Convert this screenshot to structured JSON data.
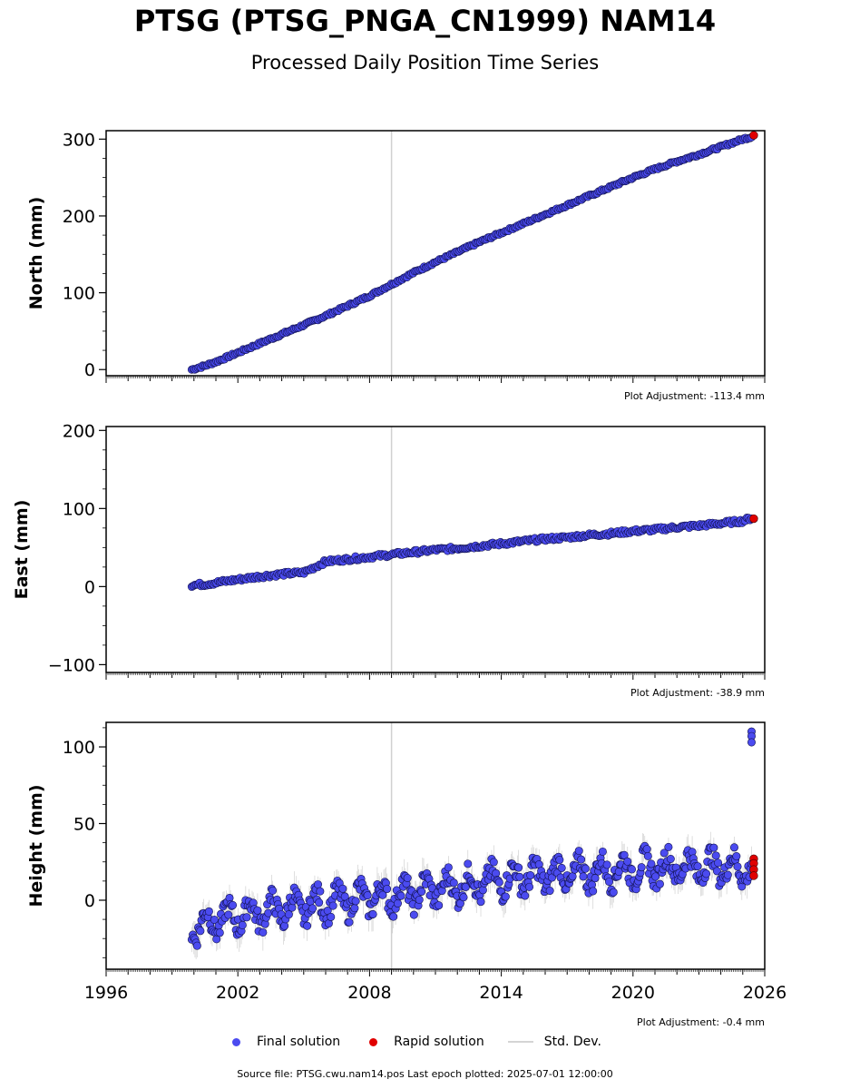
{
  "title": "PTSG (PTSG_PNGA_CN1999) NAM14",
  "subtitle": "Processed Daily Position Time Series",
  "legend": {
    "final_label": "Final solution",
    "rapid_label": "Rapid solution",
    "std_label": "Std. Dev."
  },
  "colors": {
    "final": "#4b4bf0",
    "rapid": "#e00000",
    "stddev": "#c8c8c8",
    "vertical_line": "#d0d0d0"
  },
  "footer": "Source file: PTSG.cwu.nam14.pos  Last epoch plotted: 2025-07-01 12:00:00",
  "chart_data": [
    {
      "type": "scatter",
      "ylabel": "North (mm)",
      "adjustment": "Plot Adjustment: -113.4 mm",
      "xlim": [
        1996,
        2026
      ],
      "ylim": [
        -8,
        311
      ],
      "yticks": [
        0,
        100,
        200,
        300
      ],
      "yticklabels": [
        "0",
        "100",
        "200",
        "300"
      ],
      "xticklabels_shown": false,
      "vertical_line_x": 2009.0,
      "final_solution": {
        "x": [
          1999.9,
          2000.5,
          2001.0,
          2002.0,
          2003.0,
          2004.0,
          2005.0,
          2006.0,
          2007.0,
          2008.0,
          2009.0,
          2010.0,
          2011.0,
          2012.0,
          2013.0,
          2014.0,
          2015.0,
          2016.0,
          2017.0,
          2018.0,
          2019.0,
          2020.0,
          2021.0,
          2022.0,
          2023.0,
          2024.0,
          2025.0,
          2025.4
        ],
        "y": [
          0,
          5,
          10,
          22,
          34,
          46,
          58,
          70,
          83,
          96,
          111,
          126,
          140,
          153,
          166,
          178,
          190,
          202,
          214,
          226,
          238,
          250,
          261,
          271,
          280,
          290,
          300,
          303
        ]
      },
      "rapid_solution": {
        "x": [
          2025.5
        ],
        "y": [
          305
        ]
      }
    },
    {
      "type": "scatter",
      "ylabel": "East (mm)",
      "adjustment": "Plot Adjustment: -38.9 mm",
      "xlim": [
        1996,
        2026
      ],
      "ylim": [
        -110,
        205
      ],
      "yticks": [
        -100,
        0,
        100,
        200
      ],
      "yticklabels": [
        "−100",
        "0",
        "100",
        "200"
      ],
      "xticklabels_shown": false,
      "vertical_line_x": 2009.0,
      "final_solution": {
        "x": [
          1999.9,
          2000.5,
          2001.0,
          2002.0,
          2003.0,
          2004.0,
          2005.0,
          2005.5,
          2006.0,
          2007.0,
          2008.0,
          2009.0,
          2010.0,
          2011.0,
          2012.0,
          2013.0,
          2014.0,
          2015.0,
          2016.0,
          2017.0,
          2018.0,
          2019.0,
          2020.0,
          2021.0,
          2022.0,
          2023.0,
          2024.0,
          2025.0,
          2025.4
        ],
        "y": [
          2,
          3,
          5,
          9,
          13,
          16,
          18,
          25,
          32,
          35,
          38,
          41,
          44,
          47,
          49,
          52,
          55,
          58,
          61,
          63,
          66,
          68,
          71,
          73,
          76,
          78,
          81,
          84,
          88
        ]
      },
      "rapid_solution": {
        "x": [
          2025.5
        ],
        "y": [
          87
        ]
      }
    },
    {
      "type": "scatter",
      "ylabel": "Height (mm)",
      "adjustment": "Plot Adjustment: -0.4 mm",
      "xlim": [
        1996,
        2026
      ],
      "ylim": [
        -45,
        116
      ],
      "yticks": [
        0,
        50,
        100
      ],
      "yticklabels": [
        "0",
        "50",
        "100"
      ],
      "xticks": [
        1996,
        2002,
        2008,
        2014,
        2020,
        2026
      ],
      "xticklabels": [
        "1996",
        "2002",
        "2008",
        "2014",
        "2020",
        "2026"
      ],
      "xticklabels_shown": true,
      "vertical_line_x": 2009.0,
      "final_solution": {
        "x": [
          1999.9,
          2000.5,
          2001.0,
          2002.0,
          2003.0,
          2004.0,
          2005.0,
          2006.0,
          2007.0,
          2008.0,
          2009.0,
          2010.0,
          2011.0,
          2012.0,
          2013.0,
          2014.0,
          2015.0,
          2016.0,
          2017.0,
          2018.0,
          2019.0,
          2020.0,
          2021.0,
          2022.0,
          2023.0,
          2024.0,
          2025.0,
          2025.4
        ],
        "y": [
          -18,
          -15,
          -13,
          -10,
          -8,
          -6,
          -4,
          -2,
          0,
          2,
          3,
          5,
          7,
          9,
          11,
          13,
          15,
          16,
          17,
          18,
          19,
          20,
          21,
          22,
          22,
          22,
          21,
          20
        ]
      },
      "outliers": {
        "x": [
          2025.4,
          2025.4,
          2025.4
        ],
        "y": [
          110,
          107,
          103
        ]
      },
      "rapid_solution": {
        "x": [
          2025.5,
          2025.5,
          2025.5,
          2025.5
        ],
        "y": [
          27,
          24,
          20,
          16
        ]
      }
    }
  ]
}
